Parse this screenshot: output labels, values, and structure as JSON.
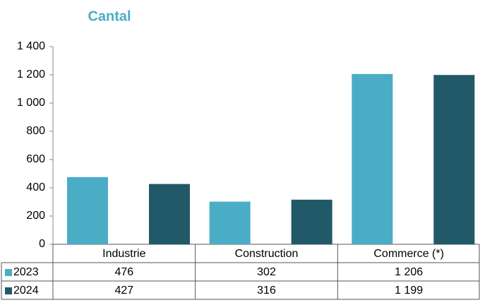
{
  "chart_data": {
    "type": "bar",
    "title": "Cantal",
    "categories": [
      "Industrie",
      "Construction",
      "Commerce (*)"
    ],
    "series": [
      {
        "name": "2023",
        "color": "#4bacc6",
        "values": [
          476,
          302,
          1206
        ],
        "value_labels": [
          "476",
          "302",
          "1 206"
        ]
      },
      {
        "name": "2024",
        "color": "#215968",
        "values": [
          427,
          316,
          1199
        ],
        "value_labels": [
          "427",
          "316",
          "1 199"
        ]
      }
    ],
    "ylim": [
      0,
      1400
    ],
    "yticks": [
      0,
      200,
      400,
      600,
      800,
      {
        "value": 1000,
        "label": "1 000"
      },
      {
        "value": 1200,
        "label": "1 200"
      },
      {
        "value": 1400,
        "label": "1 400"
      }
    ],
    "grid": false
  }
}
